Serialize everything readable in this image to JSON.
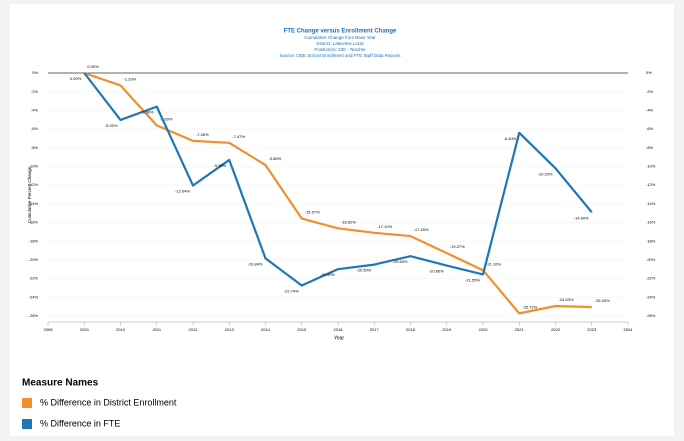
{
  "chart_data": {
    "type": "line",
    "title": "FTE Change versus Enrollment Change",
    "subtitles": [
      "Cumulative Change from Base Year",
      "District: Lakeview Local",
      "Position(s): 230 - Teacher",
      "Source: ODE School Enrollment and FTE Staff Data Reports"
    ],
    "x_label": "Year",
    "y_label": "Cumulative Percent Change",
    "x": [
      2009,
      2010,
      2011,
      2012,
      2013,
      2014,
      2015,
      2016,
      2017,
      2018,
      2019,
      2020,
      2021,
      2022,
      2023
    ],
    "xlim": [
      2008,
      2024
    ],
    "xticks": [
      2008,
      2009,
      2010,
      2011,
      2012,
      2013,
      2014,
      2015,
      2016,
      2017,
      2018,
      2019,
      2020,
      2021,
      2022,
      2023,
      2024
    ],
    "ylim": [
      -26,
      0
    ],
    "yticks": [
      {
        "value": 0,
        "label": "0%"
      },
      {
        "value": -2,
        "label": "-2%"
      },
      {
        "value": -4,
        "label": "-4%"
      },
      {
        "value": -6,
        "label": "-6%"
      },
      {
        "value": -8,
        "label": "-8%"
      },
      {
        "value": -10,
        "label": "-10%"
      },
      {
        "value": -12,
        "label": "-12%"
      },
      {
        "value": -14,
        "label": "-14%"
      },
      {
        "value": -16,
        "label": "-16%"
      },
      {
        "value": -18,
        "label": "-18%"
      },
      {
        "value": -20,
        "label": "-20%"
      },
      {
        "value": -22,
        "label": "-22%"
      },
      {
        "value": -24,
        "label": "-24%"
      },
      {
        "value": -26,
        "label": "-26%"
      }
    ],
    "legend_title": "Measure Names",
    "legend": "bottom-left",
    "series": [
      {
        "name": "% Difference in District Enrollment",
        "color": "#f28e2b",
        "values": [
          0,
          -1.33,
          -5.6,
          -7.26,
          -7.47,
          -9.85,
          -15.57,
          -16.62,
          -17.1,
          -17.45,
          -19.27,
          -21.1,
          -25.72,
          -24.93,
          -25.05
        ],
        "value_labels": [
          "0.00%",
          "-1.33%",
          "-5.60%",
          "-7.26%",
          "-7.47%",
          "-9.85%",
          "-15.57%",
          "-16.62%",
          "-17.10%",
          "-17.45%",
          "-19.27%",
          "-21.10%",
          "-25.72%",
          "-24.93%",
          "-25.05%"
        ]
      },
      {
        "name": "% Difference in FTE",
        "color": "#1f77b4",
        "values": [
          0,
          -5.02,
          -3.6,
          -12.04,
          -9.3,
          -19.84,
          -22.74,
          -20.99,
          -20.5,
          -19.6,
          -20.6,
          -21.55,
          -6.4,
          -10.2,
          -14.9
        ],
        "value_labels": [
          "0.00%",
          "-5.02%",
          "-3.60%",
          "-12.04%",
          "-9.30%",
          "-19.84%",
          "-22.74%",
          "-20.99%",
          "-20.50%",
          "-19.60%",
          "-20.60%",
          "-21.55%",
          "-6.40%",
          "-10.20%",
          "-14.90%"
        ]
      }
    ]
  }
}
